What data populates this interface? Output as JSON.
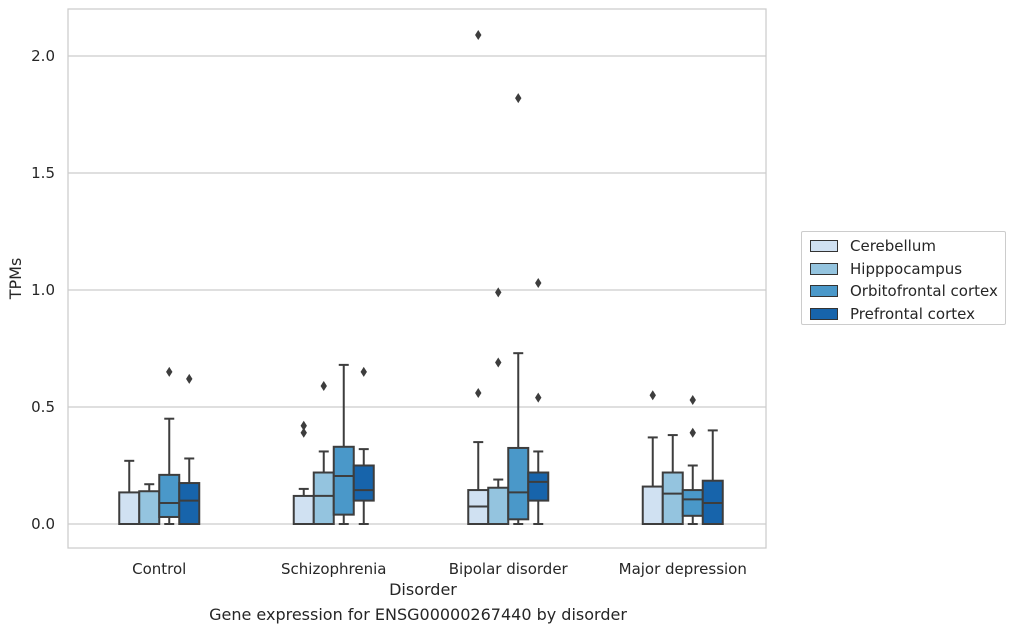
{
  "chart_data": {
    "type": "box",
    "title": "",
    "caption": "Gene expression for ENSG00000267440 by disorder",
    "xlabel": "Disorder",
    "ylabel": "TPMs",
    "ylim": [
      -0.1,
      2.2
    ],
    "yticks": [
      0.0,
      0.5,
      1.0,
      1.5,
      2.0
    ],
    "ytick_labels": [
      "0.0",
      "0.5",
      "1.0",
      "1.5",
      "2.0"
    ],
    "grid": "horizontal",
    "legend_position": "right",
    "categories": [
      "Control",
      "Schizophrenia",
      "Bipolar disorder",
      "Major depression"
    ],
    "series": [
      {
        "name": "Cerebellum",
        "color": "#d0e1f2",
        "boxes": [
          {
            "whislo": 0.0,
            "q1": 0.0,
            "med": 0.0,
            "q3": 0.135,
            "whishi": 0.27,
            "fliers": []
          },
          {
            "whislo": 0.0,
            "q1": 0.0,
            "med": 0.0,
            "q3": 0.12,
            "whishi": 0.15,
            "fliers": [
              0.39,
              0.42
            ]
          },
          {
            "whislo": 0.0,
            "q1": 0.0,
            "med": 0.075,
            "q3": 0.145,
            "whishi": 0.35,
            "fliers": [
              0.56,
              2.09
            ]
          },
          {
            "whislo": 0.0,
            "q1": 0.0,
            "med": 0.0,
            "q3": 0.16,
            "whishi": 0.37,
            "fliers": [
              0.55
            ]
          }
        ]
      },
      {
        "name": "Hipppocampus",
        "color": "#94c4df",
        "boxes": [
          {
            "whislo": 0.0,
            "q1": 0.0,
            "med": 0.0,
            "q3": 0.14,
            "whishi": 0.17,
            "fliers": []
          },
          {
            "whislo": 0.0,
            "q1": 0.0,
            "med": 0.12,
            "q3": 0.22,
            "whishi": 0.31,
            "fliers": [
              0.59
            ]
          },
          {
            "whislo": 0.0,
            "q1": 0.0,
            "med": 0.0,
            "q3": 0.155,
            "whishi": 0.19,
            "fliers": [
              0.69,
              0.99
            ]
          },
          {
            "whislo": 0.0,
            "q1": 0.0,
            "med": 0.13,
            "q3": 0.22,
            "whishi": 0.38,
            "fliers": []
          }
        ]
      },
      {
        "name": "Orbitofrontal cortex",
        "color": "#4a98c9",
        "boxes": [
          {
            "whislo": 0.0,
            "q1": 0.03,
            "med": 0.09,
            "q3": 0.21,
            "whishi": 0.45,
            "fliers": [
              0.65
            ]
          },
          {
            "whislo": 0.0,
            "q1": 0.04,
            "med": 0.205,
            "q3": 0.33,
            "whishi": 0.68,
            "fliers": []
          },
          {
            "whislo": 0.0,
            "q1": 0.02,
            "med": 0.135,
            "q3": 0.325,
            "whishi": 0.73,
            "fliers": [
              1.82
            ]
          },
          {
            "whislo": 0.0,
            "q1": 0.035,
            "med": 0.105,
            "q3": 0.145,
            "whishi": 0.25,
            "fliers": [
              0.39,
              0.53
            ]
          }
        ]
      },
      {
        "name": "Prefrontal cortex",
        "color": "#1764ab",
        "boxes": [
          {
            "whislo": 0.0,
            "q1": 0.0,
            "med": 0.1,
            "q3": 0.175,
            "whishi": 0.28,
            "fliers": [
              0.62
            ]
          },
          {
            "whislo": 0.0,
            "q1": 0.1,
            "med": 0.145,
            "q3": 0.25,
            "whishi": 0.32,
            "fliers": [
              0.65
            ]
          },
          {
            "whislo": 0.0,
            "q1": 0.1,
            "med": 0.18,
            "q3": 0.22,
            "whishi": 0.31,
            "fliers": [
              0.54,
              1.03
            ]
          },
          {
            "whislo": 0.0,
            "q1": 0.0,
            "med": 0.09,
            "q3": 0.185,
            "whishi": 0.4,
            "fliers": []
          }
        ]
      }
    ]
  }
}
